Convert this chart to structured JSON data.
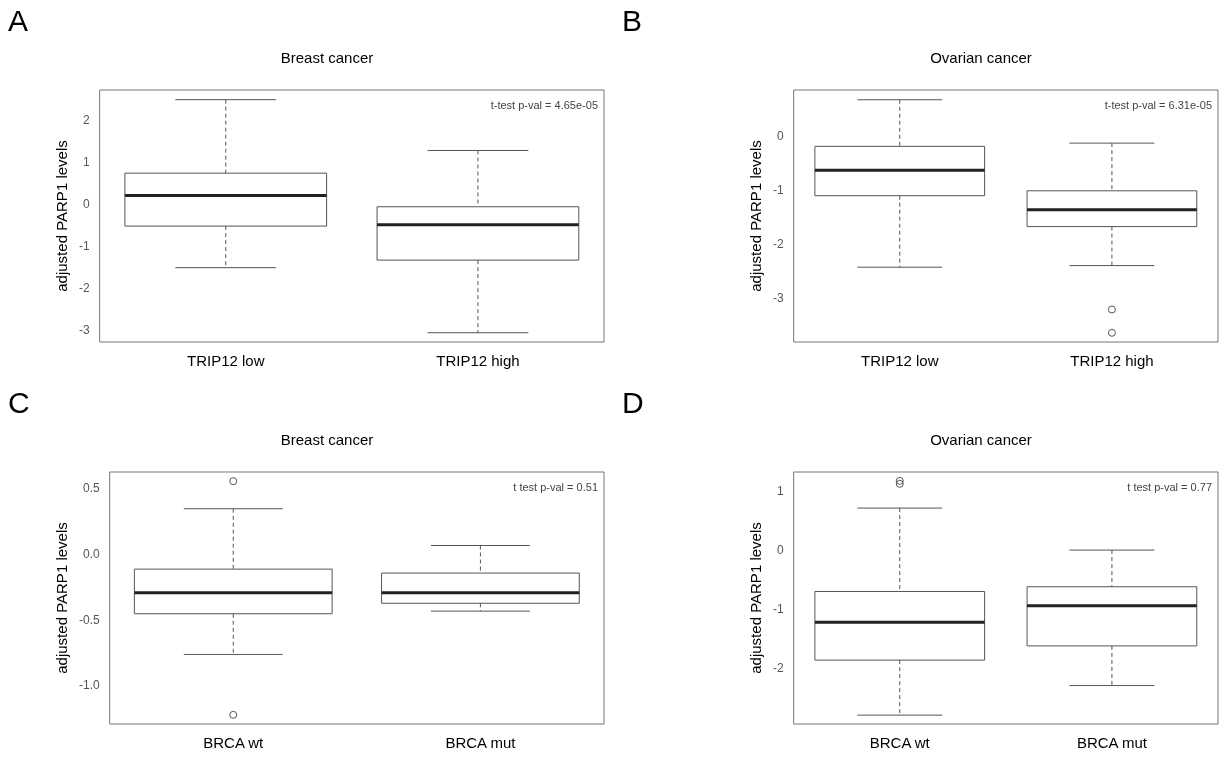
{
  "chart_data": [
    {
      "type": "box",
      "title": "Breast cancer",
      "ylabel": "adjusted PARP1 levels",
      "categories": [
        "TRIP12 low",
        "TRIP12 high"
      ],
      "boxes": [
        {
          "low": -1.5,
          "q1": -0.51,
          "median": 0.22,
          "q3": 0.75,
          "high": 2.5
        },
        {
          "low": -3.05,
          "q1": -1.32,
          "median": -0.48,
          "q3": -0.05,
          "high": 1.29
        }
      ],
      "ylim": [
        -3.27,
        2.73
      ],
      "yticks": [
        -3,
        -2,
        -1,
        0,
        1,
        2
      ],
      "annotations": [
        "A",
        "t-test p-val = 4.65e-05"
      ]
    },
    {
      "type": "box",
      "title": "Ovarian cancer",
      "ylabel": "adjusted PARP1 levels",
      "categories": [
        "TRIP12 low",
        "TRIP12 high"
      ],
      "boxes": [
        {
          "low": -2.41,
          "q1": -1.09,
          "median": -0.62,
          "q3": -0.18,
          "high": 0.68
        },
        {
          "low": -2.38,
          "q1": -1.66,
          "median": -1.35,
          "q3": -1.0,
          "high": -0.12,
          "outliers": [
            -3.19,
            -3.62
          ]
        }
      ],
      "ylim": [
        -3.79,
        0.86
      ],
      "yticks": [
        -3,
        -2,
        -1,
        0
      ],
      "annotations": [
        "B",
        "t-test p-val = 6.31e-05"
      ]
    },
    {
      "type": "box",
      "title": "Breast cancer",
      "ylabel": "adjusted PARP1 levels",
      "categories": [
        "BRCA wt",
        "BRCA mut"
      ],
      "boxes": [
        {
          "low": -0.76,
          "q1": -0.45,
          "median": -0.29,
          "q3": -0.11,
          "high": 0.35,
          "outliers": [
            0.56,
            -1.22
          ]
        },
        {
          "low": -0.43,
          "q1": -0.37,
          "median": -0.29,
          "q3": -0.14,
          "high": 0.07
        }
      ],
      "ylim": [
        -1.29,
        0.63
      ],
      "yticks": [
        {
          "value": -1,
          "label": "-1.0"
        },
        -0.5,
        {
          "value": 0,
          "label": "0.0"
        },
        0.5
      ],
      "annotations": [
        "C",
        "t test p-val = 0.51"
      ]
    },
    {
      "type": "box",
      "title": "Ovarian cancer",
      "ylabel": "adjusted PARP1 levels",
      "categories": [
        "BRCA wt",
        "BRCA mut"
      ],
      "boxes": [
        {
          "low": -2.78,
          "q1": -1.85,
          "median": -1.21,
          "q3": -0.69,
          "high": 0.72,
          "outliers": [
            1.18,
            1.13
          ]
        },
        {
          "low": -2.28,
          "q1": -1.61,
          "median": -0.93,
          "q3": -0.61,
          "high": 0.01
        }
      ],
      "ylim": [
        -2.93,
        1.33
      ],
      "yticks": [
        -2,
        -1,
        0,
        1
      ],
      "annotations": [
        "D",
        "t test p-val = 0.77"
      ]
    }
  ]
}
